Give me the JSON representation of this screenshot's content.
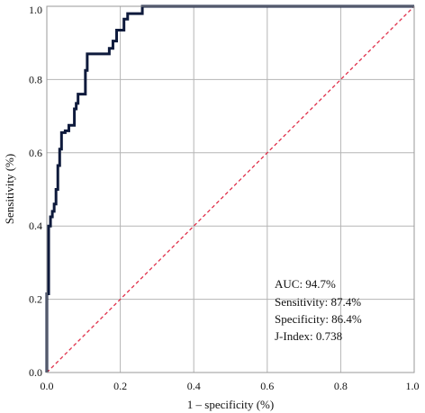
{
  "chart_data": {
    "type": "line",
    "title": "",
    "xlabel": "1 – specificity (%)",
    "ylabel": "Sensitivity (%)",
    "xlim": [
      0,
      1
    ],
    "ylim": [
      0,
      1
    ],
    "grid": true,
    "x_ticks": [
      "0.0",
      "0.2",
      "0.4",
      "0.6",
      "0.8",
      "1.0"
    ],
    "y_ticks": [
      "0.0",
      "0.2",
      "0.4",
      "0.6",
      "0.8",
      "1.0"
    ],
    "reference_line": {
      "x": [
        0,
        1
      ],
      "y": [
        0,
        1
      ],
      "color": "#e0304a",
      "style": "dashed"
    },
    "series": [
      {
        "color": "#0e1a3c",
        "points": [
          [
            0.0,
            0.0
          ],
          [
            0.0,
            0.215
          ],
          [
            0.005,
            0.215
          ],
          [
            0.005,
            0.4
          ],
          [
            0.01,
            0.4
          ],
          [
            0.01,
            0.425
          ],
          [
            0.015,
            0.425
          ],
          [
            0.015,
            0.44
          ],
          [
            0.02,
            0.44
          ],
          [
            0.02,
            0.46
          ],
          [
            0.025,
            0.46
          ],
          [
            0.025,
            0.5
          ],
          [
            0.03,
            0.5
          ],
          [
            0.03,
            0.565
          ],
          [
            0.035,
            0.565
          ],
          [
            0.035,
            0.61
          ],
          [
            0.04,
            0.61
          ],
          [
            0.04,
            0.655
          ],
          [
            0.05,
            0.655
          ],
          [
            0.05,
            0.66
          ],
          [
            0.06,
            0.66
          ],
          [
            0.06,
            0.675
          ],
          [
            0.075,
            0.675
          ],
          [
            0.075,
            0.72
          ],
          [
            0.08,
            0.72
          ],
          [
            0.08,
            0.735
          ],
          [
            0.085,
            0.735
          ],
          [
            0.085,
            0.76
          ],
          [
            0.105,
            0.76
          ],
          [
            0.105,
            0.825
          ],
          [
            0.11,
            0.825
          ],
          [
            0.11,
            0.87
          ],
          [
            0.17,
            0.87
          ],
          [
            0.17,
            0.885
          ],
          [
            0.18,
            0.885
          ],
          [
            0.18,
            0.905
          ],
          [
            0.19,
            0.905
          ],
          [
            0.19,
            0.935
          ],
          [
            0.21,
            0.935
          ],
          [
            0.21,
            0.965
          ],
          [
            0.22,
            0.965
          ],
          [
            0.22,
            0.98
          ],
          [
            0.26,
            0.98
          ],
          [
            0.26,
            1.0
          ],
          [
            1.0,
            1.0
          ]
        ]
      }
    ],
    "annotations": [
      "AUC: 94.7%",
      "Sensitivity: 87.4%",
      "Specificity: 86.4%",
      "J-Index: 0.738"
    ],
    "annotation_placement": "bottom-right"
  }
}
